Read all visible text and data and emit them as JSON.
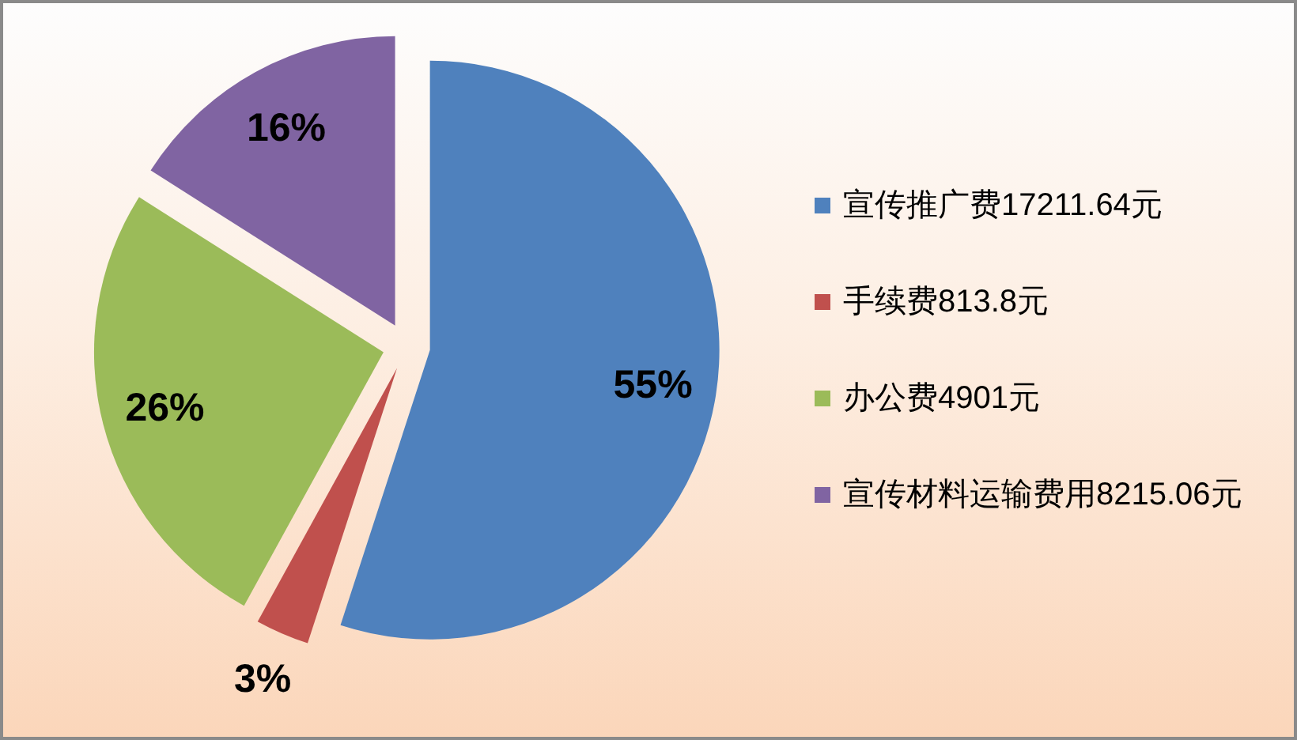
{
  "chart_data": {
    "type": "pie",
    "categories": [
      "宣传推广费17211.64元",
      "手续费813.8元",
      "办公费4901元",
      "宣传材料运输费用8215.06元"
    ],
    "values": [
      55,
      3,
      26,
      16
    ],
    "colors": [
      "#4f81bd",
      "#c0504d",
      "#9bbb59",
      "#8064a2"
    ],
    "value_labels": [
      "55%",
      "3%",
      "26%",
      "16%"
    ],
    "legend": "right"
  }
}
